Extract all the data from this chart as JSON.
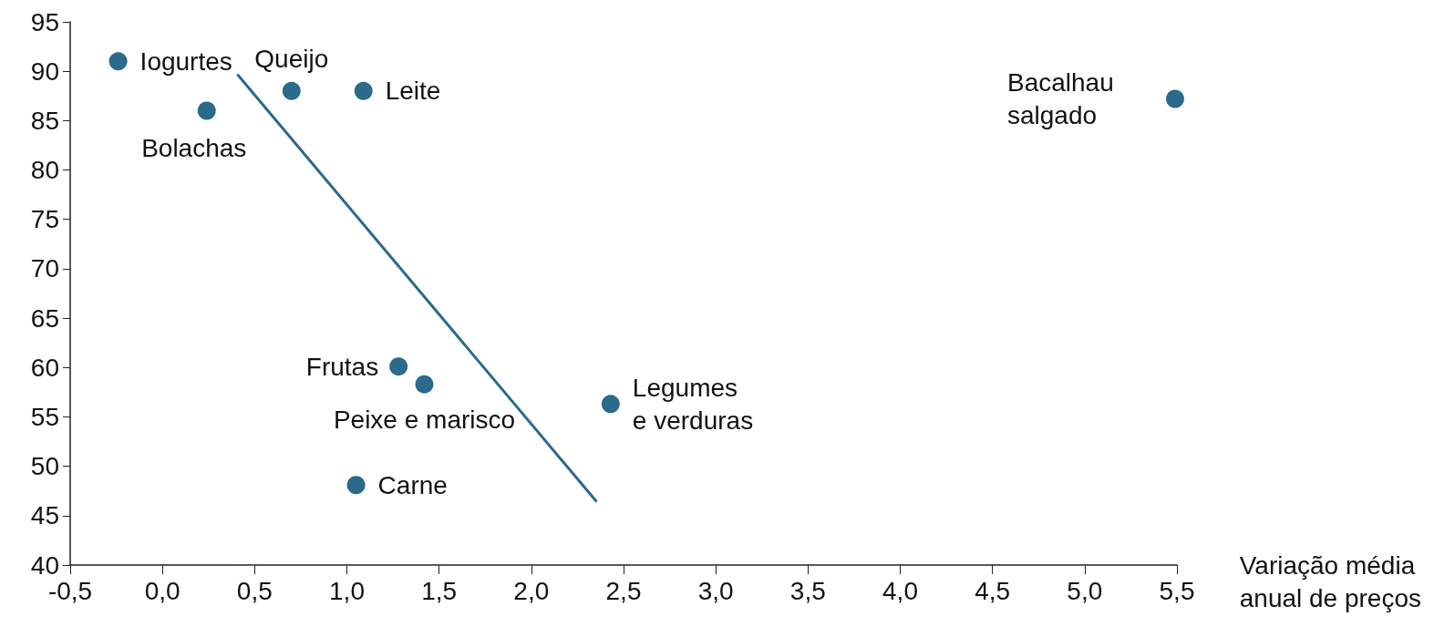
{
  "chart_data": {
    "type": "scatter",
    "xlabel": "Variação média\nanual de preços",
    "series": [
      {
        "marker": "circle",
        "color": "#2a6a8a",
        "x": [
          -0.24,
          0.24,
          0.7,
          1.09,
          5.49,
          1.28,
          1.42,
          2.43,
          1.05
        ],
        "values": [
          91,
          86,
          88,
          88,
          87.2,
          60.1,
          58.3,
          56.3,
          48.1
        ]
      },
      {
        "type": "line",
        "color": "#2a6a8a",
        "x": [
          0.41,
          2.35
        ],
        "values": [
          89.6,
          46.5
        ]
      }
    ],
    "annotations": [
      {
        "text": "Iogurtes",
        "x": -0.24,
        "y": 91
      },
      {
        "text": "Bolachas",
        "x": 0.24,
        "y": 86
      },
      {
        "text": "Queijo",
        "x": 0.7,
        "y": 88
      },
      {
        "text": "Leite",
        "x": 1.09,
        "y": 88
      },
      {
        "text": "Bacalhau\nsalgado",
        "x": 5.49,
        "y": 87.2
      },
      {
        "text": "Frutas",
        "x": 1.28,
        "y": 60.1
      },
      {
        "text": "Peixe e marisco",
        "x": 1.42,
        "y": 58.3
      },
      {
        "text": "Legumes\ne verduras",
        "x": 2.43,
        "y": 56.3
      },
      {
        "text": "Carne",
        "x": 1.05,
        "y": 48.1
      }
    ],
    "xlim": [
      -0.5,
      5.5
    ],
    "xticks": [
      {
        "value": -0.5,
        "label": "-0,5"
      },
      {
        "value": 0,
        "label": "0,0"
      },
      {
        "value": 0.5,
        "label": "0,5"
      },
      {
        "value": 1,
        "label": "1,0"
      },
      {
        "value": 1.5,
        "label": "1,5"
      },
      {
        "value": 2,
        "label": "2,0"
      },
      {
        "value": 2.5,
        "label": "2,5"
      },
      {
        "value": 3,
        "label": "3,0"
      },
      {
        "value": 3.5,
        "label": "3,5"
      },
      {
        "value": 4,
        "label": "4,0"
      },
      {
        "value": 4.5,
        "label": "4,5"
      },
      {
        "value": 5,
        "label": "5,0"
      },
      {
        "value": 5.5,
        "label": "5,5"
      }
    ],
    "ylim": [
      40,
      95
    ],
    "yticks": [
      40,
      45,
      50,
      55,
      60,
      65,
      70,
      75,
      80,
      85,
      90,
      95
    ],
    "grid": false,
    "line_style": "solid"
  }
}
